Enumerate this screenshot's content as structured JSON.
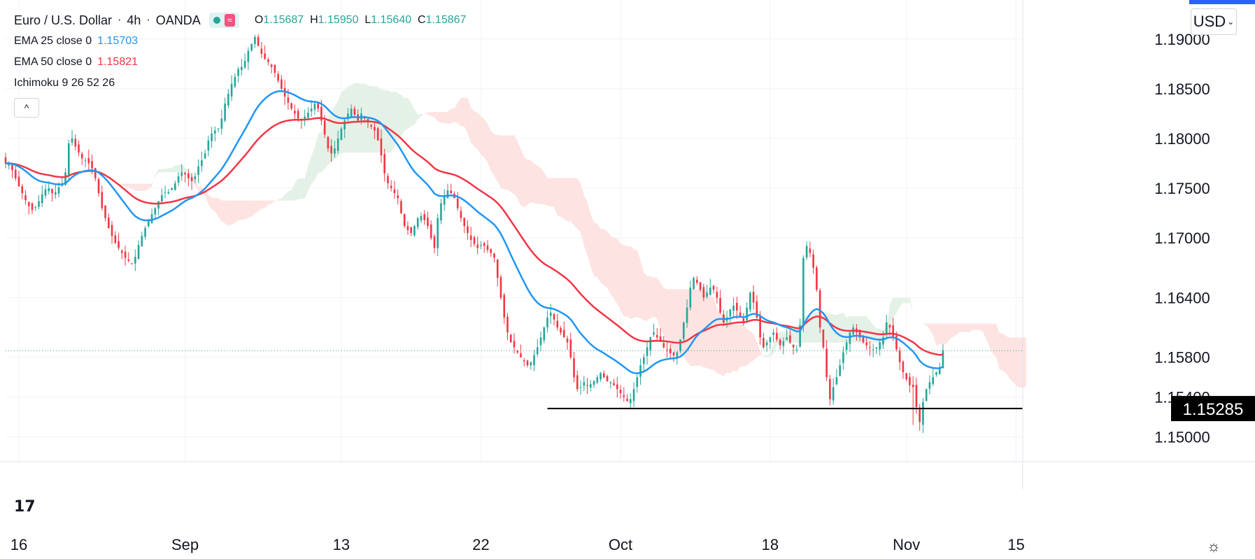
{
  "header": {
    "symbol_title": "Euro / U.S. Dollar",
    "interval": "4h",
    "broker": "OANDA",
    "wave_glyph": "≈",
    "ohlc": {
      "o_label": "O",
      "o_value": "1.15687",
      "h_label": "H",
      "h_value": "1.15950",
      "l_label": "L",
      "l_value": "1.15640",
      "c_label": "C",
      "c_value": "1.15867"
    },
    "collapse_glyph": "^"
  },
  "indicators": [
    {
      "name": "EMA 25 close 0",
      "value": "1.15703",
      "color": "#2196f3"
    },
    {
      "name": "EMA 50 close 0",
      "value": "1.15821",
      "color": "#f23645"
    },
    {
      "name": "Ichimoku 9 26 52 26",
      "value": ""
    }
  ],
  "currency_button": {
    "label": "USD",
    "chevron": "⌄"
  },
  "logo_text": "17",
  "settings_glyph": "☼",
  "colors": {
    "up": "#26a69a",
    "down": "#f23645",
    "ema25": "#2196f3",
    "ema50": "#f23645",
    "kumo_bear": "#fde3e1",
    "kumo_bull": "#e4f1e6",
    "grid": "#f0f3fa"
  },
  "chart_data": {
    "type": "candlestick",
    "title": "Euro / U.S. Dollar, 4h, OANDA",
    "ylim": [
      1.1475,
      1.1935
    ],
    "y_ticks": [
      "1.15000",
      "1.15400",
      "1.15800",
      "1.16400",
      "1.17000",
      "1.17500",
      "1.18000",
      "1.18500",
      "1.19000"
    ],
    "x_ticks": [
      "16",
      "Sep",
      "13",
      "22",
      "Oct",
      "18",
      "Nov",
      "15"
    ],
    "x_tick_positions": [
      4,
      54,
      101,
      143,
      185,
      230,
      271,
      304
    ],
    "x_range": [
      0,
      306
    ],
    "current_price": 1.15867,
    "support_level": {
      "value": 1.15285,
      "label": "1.15285",
      "x_start": 163
    },
    "ohlc_close": [
      1.1775,
      1.1775,
      1.1768,
      1.176,
      1.1752,
      1.1745,
      1.1738,
      1.1732,
      1.1728,
      1.1731,
      1.1737,
      1.1744,
      1.1749,
      1.175,
      1.1745,
      1.1746,
      1.1751,
      1.1755,
      1.1766,
      1.1795,
      1.18,
      1.1792,
      1.1786,
      1.178,
      1.1778,
      1.1775,
      1.177,
      1.176,
      1.1745,
      1.173,
      1.172,
      1.171,
      1.1702,
      1.1695,
      1.169,
      1.1685,
      1.168,
      1.1677,
      1.1674,
      1.1681,
      1.1693,
      1.1702,
      1.171,
      1.1718,
      1.1724,
      1.173,
      1.1737,
      1.1743,
      1.1746,
      1.1746,
      1.175,
      1.1755,
      1.1762,
      1.1766,
      1.1764,
      1.176,
      1.1757,
      1.1762,
      1.1772,
      1.1778,
      1.1785,
      1.1798,
      1.1805,
      1.1808,
      1.181,
      1.182,
      1.1835,
      1.1845,
      1.1855,
      1.1862,
      1.187,
      1.1872,
      1.1878,
      1.1888,
      1.1895,
      1.1902,
      1.1893,
      1.1885,
      1.188,
      1.1877,
      1.1872,
      1.1866,
      1.1858,
      1.185,
      1.1842,
      1.1836,
      1.183,
      1.1825,
      1.182,
      1.1818,
      1.1822,
      1.1826,
      1.183,
      1.1835,
      1.183,
      1.1818,
      1.1804,
      1.179,
      1.1785,
      1.179,
      1.18,
      1.181,
      1.1818,
      1.1825,
      1.183,
      1.1824,
      1.1818,
      1.1825,
      1.182,
      1.1816,
      1.1812,
      1.1808,
      1.1798,
      1.1783,
      1.1765,
      1.1755,
      1.175,
      1.1745,
      1.174,
      1.1725,
      1.1712,
      1.1708,
      1.1705,
      1.1712,
      1.172,
      1.1722,
      1.1718,
      1.1712,
      1.17,
      1.169,
      1.172,
      1.1735,
      1.1742,
      1.1748,
      1.1745,
      1.174,
      1.173,
      1.172,
      1.1712,
      1.1705,
      1.1698,
      1.1694,
      1.169,
      1.1693,
      1.1692,
      1.1688,
      1.1685,
      1.168,
      1.166,
      1.164,
      1.162,
      1.1605,
      1.1595,
      1.159,
      1.1585,
      1.158,
      1.1576,
      1.1572,
      1.1575,
      1.1582,
      1.159,
      1.16,
      1.161,
      1.162,
      1.1625,
      1.1618,
      1.161,
      1.1605,
      1.16,
      1.1595,
      1.158,
      1.156,
      1.1548,
      1.155,
      1.1555,
      1.1552,
      1.1553,
      1.1556,
      1.156,
      1.1564,
      1.156,
      1.1556,
      1.1555,
      1.1552,
      1.1548,
      1.1544,
      1.154,
      1.1536,
      1.1538,
      1.1548,
      1.156,
      1.1572,
      1.158,
      1.159,
      1.16,
      1.1605,
      1.16,
      1.1596,
      1.159,
      1.1587,
      1.1584,
      1.1582,
      1.1585,
      1.1598,
      1.1615,
      1.163,
      1.165,
      1.166,
      1.1655,
      1.1648,
      1.164,
      1.1645,
      1.165,
      1.1648,
      1.164,
      1.1625,
      1.1615,
      1.162,
      1.1628,
      1.1632,
      1.1627,
      1.162,
      1.1615,
      1.163,
      1.1645,
      1.1635,
      1.162,
      1.16,
      1.159,
      1.1595,
      1.16,
      1.1605,
      1.1598,
      1.1592,
      1.1596,
      1.16,
      1.1595,
      1.159,
      1.1588,
      1.1612,
      1.168,
      1.1692,
      1.1685,
      1.167,
      1.1648,
      1.161,
      1.159,
      1.156,
      1.1538,
      1.155,
      1.156,
      1.1572,
      1.1585,
      1.1595,
      1.1605,
      1.161,
      1.1605,
      1.16,
      1.1595,
      1.1592,
      1.159,
      1.1588,
      1.159,
      1.1595,
      1.16,
      1.1615,
      1.161,
      1.16,
      1.1588,
      1.1575,
      1.1565,
      1.1558,
      1.1552,
      1.155,
      1.153,
      1.1515,
      1.1535,
      1.1548,
      1.1555,
      1.156,
      1.1565,
      1.157,
      1.1587
    ],
    "series": [
      {
        "name": "EMA 25 close 0",
        "last": 1.15703
      },
      {
        "name": "EMA 50 close 0",
        "last": 1.15821
      },
      {
        "name": "Ichimoku 9 26 52 26"
      }
    ]
  }
}
